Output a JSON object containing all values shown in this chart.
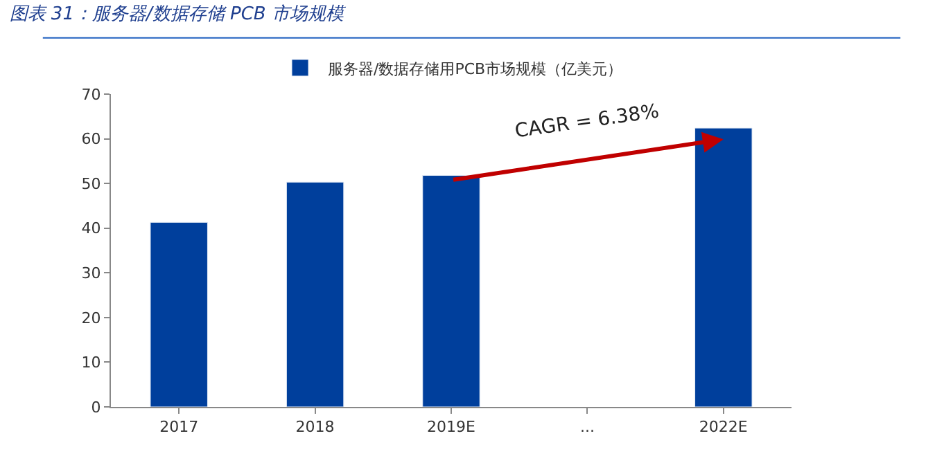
{
  "chart_data": {
    "type": "bar",
    "title": "图表 31：服务器/数据存储 PCB 市场规模",
    "categories": [
      "2017",
      "2018",
      "2019E",
      "...",
      "2022E"
    ],
    "series": [
      {
        "name": "服务器/数据存储用PCB市场规模（亿美元）",
        "color": "#003f9c",
        "values": [
          41.3,
          50.3,
          51.8,
          null,
          62.4
        ]
      }
    ],
    "ylim": [
      0,
      70
    ],
    "yticks": [
      0,
      10,
      20,
      30,
      40,
      50,
      60,
      70
    ],
    "grid": false,
    "legend": "top",
    "annotations": [
      "CAGR = 6.38%"
    ]
  }
}
